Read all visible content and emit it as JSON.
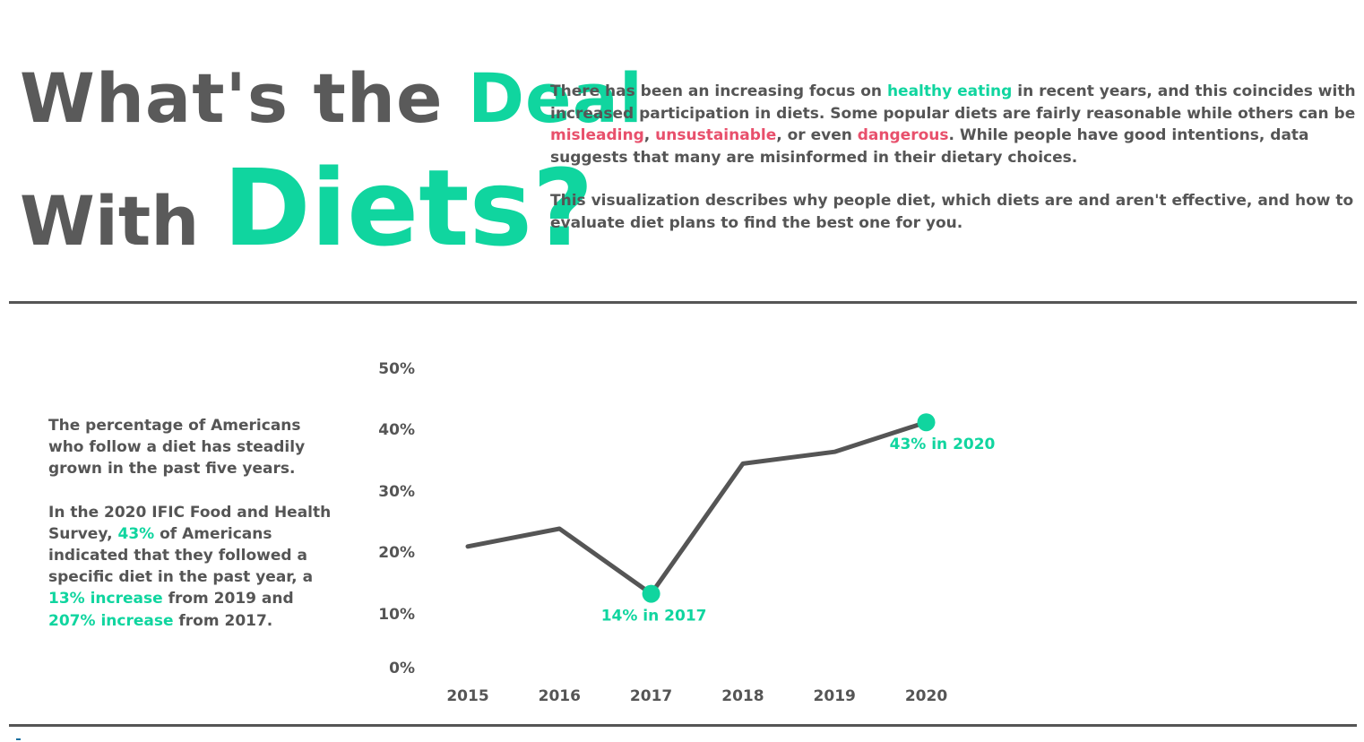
{
  "header": {
    "title_line1_a": "What's the ",
    "title_line1_b": "Deal",
    "title_line2_a": "With ",
    "title_line2_b": "Diets?"
  },
  "intro": {
    "p1_a": "There has been an increasing focus on ",
    "p1_b": "healthy eating",
    "p1_c": " in recent years, and this coincides with increased participation in diets. Some popular diets are fairly reasonable while others can be ",
    "p1_d": "misleading",
    "p1_e": ", ",
    "p1_f": "unsustainable",
    "p1_g": ", or even ",
    "p1_h": "dangerous",
    "p1_i": ". While people have good intentions, data suggests that many are misinformed in their dietary choices.",
    "p2": "This visualization describes why people diet, which diets are and aren't effective, and how to evaluate diet plans to find the best one for you."
  },
  "side": {
    "p1": "The percentage of Americans who follow a diet has steadily grown in the past five years.",
    "p2_a": "In the 2020 IFIC Food and Health Survey, ",
    "p2_b": "43%",
    "p2_c": " of Americans indicated that they followed a specific diet in the past year, a ",
    "p2_d": "13% increase",
    "p2_e": " from 2019 and ",
    "p2_f": "207% increase",
    "p2_g": " from 2017."
  },
  "colors": {
    "accent": "#10d59f",
    "warning": "#e8506c",
    "text": "#555555",
    "line": "#555555"
  },
  "chart_data": {
    "type": "line",
    "x": [
      "2015",
      "2016",
      "2017",
      "2018",
      "2019",
      "2020"
    ],
    "series": [
      {
        "values": [
          22,
          25,
          14,
          36,
          38,
          43
        ]
      }
    ],
    "ylim": [
      0,
      50
    ],
    "yticks": [
      0,
      10,
      20,
      30,
      40,
      50
    ],
    "ytick_labels": [
      "0%",
      "10%",
      "20%",
      "30%",
      "40%",
      "50%"
    ],
    "grid": false,
    "annotations": [
      {
        "x": "2017",
        "value": 14,
        "label": "14% in 2017"
      },
      {
        "x": "2020",
        "value": 43,
        "label": "43% in 2020"
      }
    ]
  }
}
